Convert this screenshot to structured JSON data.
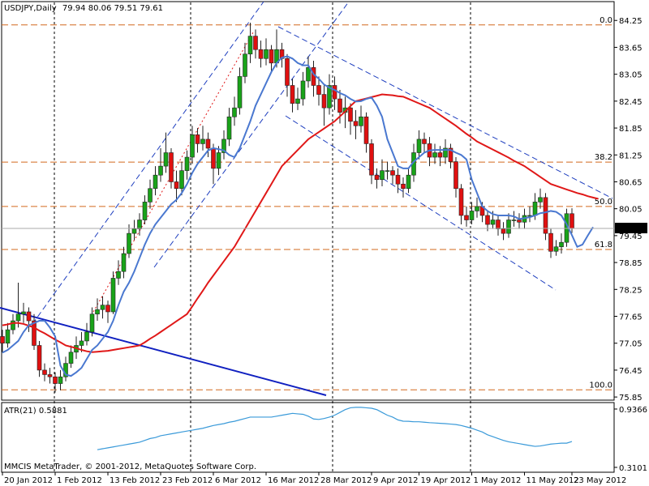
{
  "chart_data": [
    {
      "type": "candlestick",
      "title": "USDJPY,Daily",
      "categories": [
        "20 Jan 2012",
        null,
        null,
        null,
        null,
        null,
        null,
        null,
        null,
        null,
        "1 Feb 2012",
        null,
        null,
        null,
        null,
        null,
        null,
        null,
        null,
        null,
        "13 Feb 2012",
        null,
        null,
        null,
        null,
        null,
        null,
        null,
        null,
        null,
        "23 Feb 2012",
        null,
        null,
        null,
        null,
        null,
        null,
        null,
        null,
        null,
        "6 Mar 2012",
        null,
        null,
        null,
        null,
        null,
        null,
        null,
        null,
        null,
        "16 Mar 2012",
        null,
        null,
        null,
        null,
        null,
        null,
        null,
        null,
        null,
        "28 Mar 2012",
        null,
        null,
        null,
        null,
        null,
        null,
        null,
        null,
        null,
        "9 Apr 2012",
        null,
        null,
        null,
        null,
        null,
        null,
        null,
        null,
        "19 Apr 2012",
        null,
        null,
        null,
        null,
        null,
        null,
        null,
        null,
        null,
        "1 May 2012",
        null,
        null,
        null,
        null,
        null,
        null,
        null,
        null,
        null,
        "11 May 2012",
        null,
        null,
        null,
        null,
        null,
        null,
        null,
        null,
        "23 May 2012",
        null,
        null,
        null,
        null,
        null
      ],
      "ohlc": [
        [
          77.2,
          77.35,
          76.85,
          77.05
        ],
        [
          77.05,
          77.5,
          76.95,
          77.35
        ],
        [
          77.35,
          77.7,
          77.25,
          77.55
        ],
        [
          77.55,
          78.4,
          77.4,
          77.7
        ],
        [
          77.7,
          77.95,
          77.5,
          77.75
        ],
        [
          77.75,
          77.85,
          77.3,
          77.55
        ],
        [
          77.55,
          77.7,
          76.9,
          77.0
        ],
        [
          77.0,
          77.1,
          76.3,
          76.45
        ],
        [
          76.45,
          76.6,
          76.2,
          76.35
        ],
        [
          76.35,
          76.5,
          76.15,
          76.3
        ],
        [
          76.3,
          76.4,
          75.95,
          76.15
        ],
        [
          76.15,
          76.45,
          76.0,
          76.3
        ],
        [
          76.3,
          76.75,
          76.2,
          76.6
        ],
        [
          76.6,
          77.0,
          76.5,
          76.85
        ],
        [
          76.85,
          77.2,
          76.7,
          77.0
        ],
        [
          77.0,
          77.3,
          76.85,
          77.1
        ],
        [
          77.1,
          77.5,
          77.0,
          77.3
        ],
        [
          77.3,
          77.85,
          77.2,
          77.7
        ],
        [
          77.7,
          78.05,
          77.55,
          77.8
        ],
        [
          77.8,
          78.1,
          77.6,
          77.9
        ],
        [
          77.9,
          78.0,
          77.5,
          77.75
        ],
        [
          77.75,
          78.65,
          77.7,
          78.5
        ],
        [
          78.5,
          78.9,
          78.35,
          78.65
        ],
        [
          78.65,
          79.2,
          78.5,
          79.05
        ],
        [
          79.05,
          79.7,
          78.95,
          79.5
        ],
        [
          79.5,
          79.8,
          79.35,
          79.6
        ],
        [
          79.6,
          79.95,
          79.45,
          79.8
        ],
        [
          79.8,
          80.35,
          79.7,
          80.2
        ],
        [
          80.2,
          80.7,
          80.05,
          80.5
        ],
        [
          80.5,
          81.0,
          80.35,
          80.8
        ],
        [
          80.8,
          81.4,
          80.65,
          81.0
        ],
        [
          81.0,
          81.75,
          80.85,
          81.3
        ],
        [
          81.3,
          81.4,
          80.5,
          80.65
        ],
        [
          80.65,
          80.9,
          80.2,
          80.5
        ],
        [
          80.5,
          81.1,
          80.35,
          80.9
        ],
        [
          80.9,
          81.35,
          80.7,
          81.2
        ],
        [
          81.2,
          81.9,
          81.05,
          81.7
        ],
        [
          81.7,
          81.85,
          81.3,
          81.5
        ],
        [
          81.5,
          81.9,
          81.35,
          81.6
        ],
        [
          81.6,
          81.75,
          81.2,
          81.4
        ],
        [
          81.4,
          81.5,
          80.6,
          80.95
        ],
        [
          80.95,
          81.45,
          80.8,
          81.3
        ],
        [
          81.3,
          81.8,
          81.15,
          81.6
        ],
        [
          81.6,
          82.3,
          81.45,
          82.1
        ],
        [
          82.1,
          82.55,
          81.9,
          82.3
        ],
        [
          82.3,
          83.2,
          82.15,
          83.0
        ],
        [
          83.0,
          83.75,
          82.85,
          83.5
        ],
        [
          83.5,
          84.2,
          83.3,
          83.9
        ],
        [
          83.9,
          84.05,
          83.4,
          83.6
        ],
        [
          83.6,
          83.8,
          83.2,
          83.4
        ],
        [
          83.4,
          83.85,
          83.25,
          83.6
        ],
        [
          83.6,
          83.7,
          83.1,
          83.3
        ],
        [
          83.3,
          84.05,
          83.2,
          83.6
        ],
        [
          83.6,
          83.75,
          83.2,
          83.4
        ],
        [
          83.4,
          83.5,
          82.55,
          82.8
        ],
        [
          82.8,
          82.95,
          82.2,
          82.4
        ],
        [
          82.4,
          82.75,
          82.25,
          82.5
        ],
        [
          82.5,
          83.1,
          82.35,
          82.9
        ],
        [
          82.9,
          83.45,
          82.75,
          83.2
        ],
        [
          83.2,
          83.35,
          82.55,
          82.8
        ],
        [
          82.8,
          83.0,
          82.35,
          82.6
        ],
        [
          82.6,
          82.8,
          81.9,
          82.3
        ],
        [
          82.3,
          83.05,
          82.15,
          82.8
        ],
        [
          82.8,
          83.0,
          82.25,
          82.5
        ],
        [
          82.5,
          82.7,
          81.95,
          82.2
        ],
        [
          82.2,
          82.55,
          81.85,
          82.3
        ],
        [
          82.3,
          82.4,
          81.7,
          82.0
        ],
        [
          82.0,
          82.25,
          81.6,
          81.9
        ],
        [
          81.9,
          82.35,
          81.75,
          82.1
        ],
        [
          82.1,
          82.2,
          81.3,
          81.5
        ],
        [
          81.5,
          81.6,
          80.6,
          80.8
        ],
        [
          80.8,
          80.95,
          80.5,
          80.7
        ],
        [
          80.7,
          81.15,
          80.55,
          80.9
        ],
        [
          80.9,
          81.1,
          80.7,
          80.9
        ],
        [
          80.9,
          81.0,
          80.6,
          80.8
        ],
        [
          80.8,
          80.95,
          80.4,
          80.6
        ],
        [
          80.6,
          80.75,
          80.3,
          80.5
        ],
        [
          80.5,
          80.95,
          80.4,
          80.8
        ],
        [
          80.8,
          81.5,
          80.65,
          81.3
        ],
        [
          81.3,
          81.8,
          81.15,
          81.6
        ],
        [
          81.6,
          81.75,
          81.3,
          81.5
        ],
        [
          81.5,
          81.65,
          81.0,
          81.2
        ],
        [
          81.2,
          81.5,
          81.05,
          81.3
        ],
        [
          81.3,
          81.45,
          81.0,
          81.2
        ],
        [
          81.2,
          81.6,
          81.05,
          81.4
        ],
        [
          81.4,
          81.5,
          80.95,
          81.1
        ],
        [
          81.1,
          81.2,
          80.3,
          80.5
        ],
        [
          80.5,
          80.6,
          79.7,
          79.9
        ],
        [
          79.9,
          80.1,
          79.65,
          79.8
        ],
        [
          79.8,
          80.2,
          79.7,
          80.0
        ],
        [
          80.0,
          80.3,
          79.85,
          80.1
        ],
        [
          80.1,
          80.2,
          79.75,
          79.9
        ],
        [
          79.9,
          80.0,
          79.55,
          79.7
        ],
        [
          79.7,
          80.0,
          79.6,
          79.8
        ],
        [
          79.8,
          79.9,
          79.45,
          79.6
        ],
        [
          79.6,
          79.75,
          79.35,
          79.5
        ],
        [
          79.5,
          79.95,
          79.4,
          79.8
        ],
        [
          79.8,
          80.0,
          79.65,
          79.8
        ],
        [
          79.8,
          79.95,
          79.6,
          79.75
        ],
        [
          79.75,
          80.05,
          79.6,
          79.9
        ],
        [
          79.9,
          80.1,
          79.75,
          79.9
        ],
        [
          79.9,
          80.4,
          79.8,
          80.2
        ],
        [
          80.2,
          80.5,
          80.05,
          80.3
        ],
        [
          80.3,
          80.4,
          79.35,
          79.5
        ],
        [
          79.5,
          79.6,
          78.95,
          79.1
        ],
        [
          79.1,
          79.35,
          79.0,
          79.2
        ],
        [
          79.2,
          79.5,
          79.05,
          79.3
        ],
        [
          79.3,
          80.05,
          79.2,
          79.94
        ],
        [
          79.94,
          80.06,
          79.51,
          79.61
        ],
        null,
        null,
        null,
        null,
        null
      ],
      "up_color": "#19a319",
      "down_color": "#e01010",
      "lines": [
        {
          "color": "#e01818",
          "values": [
            77.45,
            77.47,
            77.5,
            77.5,
            77.48,
            77.44,
            77.4,
            77.33,
            77.27,
            77.2,
            77.13,
            77.07,
            77.0,
            76.97,
            76.94,
            76.9,
            76.87,
            76.85,
            76.86,
            76.87,
            76.88,
            76.9,
            76.92,
            76.94,
            76.96,
            76.98,
            77.0,
            77.07,
            77.15,
            77.22,
            77.3,
            77.38,
            77.46,
            77.54,
            77.62,
            77.7,
            77.87,
            78.05,
            78.22,
            78.4,
            78.56,
            78.72,
            78.88,
            79.04,
            79.2,
            79.4,
            79.6,
            79.8,
            80.0,
            80.2,
            80.4,
            80.6,
            80.8,
            81.0,
            81.12,
            81.24,
            81.36,
            81.48,
            81.6,
            81.68,
            81.76,
            81.84,
            81.92,
            82.0,
            82.11,
            82.22,
            82.34,
            82.45,
            82.48,
            82.51,
            82.54,
            82.57,
            82.6,
            82.59,
            82.58,
            82.56,
            82.55,
            82.5,
            82.45,
            82.4,
            82.35,
            82.3,
            82.22,
            82.14,
            82.06,
            81.98,
            81.9,
            81.81,
            81.72,
            81.64,
            81.55,
            81.49,
            81.43,
            81.37,
            81.31,
            81.25,
            81.19,
            81.12,
            81.06,
            81.0,
            80.92,
            80.84,
            80.76,
            80.68,
            80.6,
            80.56,
            80.52,
            80.48,
            80.44,
            80.4,
            80.37,
            80.33,
            80.3,
            80.27
          ]
        },
        {
          "color": "#4a78d0",
          "values": [
            76.84,
            76.9,
            77.0,
            77.1,
            77.3,
            77.45,
            77.5,
            77.55,
            77.55,
            77.4,
            77.2,
            76.55,
            76.35,
            76.32,
            76.4,
            76.5,
            76.7,
            76.9,
            77.0,
            77.15,
            77.3,
            77.55,
            77.9,
            78.2,
            78.4,
            78.65,
            78.95,
            79.25,
            79.5,
            79.7,
            79.85,
            80.0,
            80.15,
            80.25,
            80.4,
            80.6,
            80.85,
            81.05,
            81.2,
            81.35,
            81.4,
            81.38,
            81.35,
            81.25,
            81.2,
            81.4,
            81.7,
            82.0,
            82.35,
            82.6,
            82.85,
            83.1,
            83.3,
            83.42,
            83.45,
            83.4,
            83.3,
            83.25,
            83.25,
            83.05,
            82.95,
            82.82,
            82.75,
            82.7,
            82.63,
            82.58,
            82.5,
            82.44,
            82.45,
            82.5,
            82.53,
            82.35,
            82.1,
            81.6,
            81.3,
            81.0,
            80.95,
            80.95,
            81.1,
            81.2,
            81.3,
            81.35,
            81.36,
            81.36,
            81.36,
            81.36,
            81.3,
            81.25,
            81.15,
            80.7,
            80.4,
            80.1,
            80.0,
            79.93,
            79.9,
            79.9,
            79.9,
            79.88,
            79.82,
            79.84,
            79.86,
            79.9,
            79.95,
            79.97,
            80.0,
            79.98,
            79.9,
            79.7,
            79.46,
            79.2,
            79.25,
            79.45,
            79.64,
            null
          ]
        }
      ],
      "fib_levels": [
        {
          "label": "0.0",
          "value": 84.15
        },
        {
          "label": "38.2",
          "value": 81.09
        },
        {
          "label": "50.0",
          "value": 80.1
        },
        {
          "label": "61.8",
          "value": 79.14
        },
        {
          "label": "100.0",
          "value": 76.01
        }
      ],
      "ylim": [
        75.78,
        84.67
      ],
      "yticks": [
        84.25,
        83.65,
        83.05,
        82.45,
        81.85,
        81.25,
        80.65,
        80.05,
        79.45,
        78.85,
        78.25,
        77.65,
        77.05,
        76.45,
        75.85
      ]
    },
    {
      "type": "line",
      "title": "ATR(21)",
      "color": "#3a9ad9",
      "values": [
        null,
        null,
        null,
        null,
        null,
        null,
        null,
        null,
        null,
        null,
        null,
        null,
        null,
        null,
        null,
        null,
        null,
        null,
        0.5,
        0.51,
        0.52,
        0.53,
        0.54,
        0.55,
        0.56,
        0.57,
        0.58,
        0.6,
        0.62,
        0.63,
        0.65,
        0.66,
        0.67,
        0.68,
        0.69,
        0.7,
        0.71,
        0.72,
        0.73,
        0.745,
        0.76,
        0.77,
        0.78,
        0.795,
        0.805,
        0.82,
        0.835,
        0.85,
        0.85,
        0.85,
        0.85,
        0.85,
        0.86,
        0.87,
        0.88,
        0.89,
        0.885,
        0.88,
        0.86,
        0.83,
        0.825,
        0.835,
        0.85,
        0.87,
        0.9,
        0.93,
        0.95,
        0.955,
        0.955,
        0.95,
        0.945,
        0.93,
        0.9,
        0.87,
        0.85,
        0.82,
        0.806,
        0.805,
        0.8,
        0.8,
        0.795,
        0.79,
        0.787,
        0.783,
        0.78,
        0.775,
        0.77,
        0.76,
        0.745,
        0.73,
        0.71,
        0.69,
        0.66,
        0.64,
        0.62,
        0.6,
        0.585,
        0.575,
        0.565,
        0.555,
        0.545,
        0.536,
        0.54,
        0.55,
        0.56,
        0.565,
        0.57,
        0.57,
        0.5881,
        null,
        null,
        null,
        null,
        null
      ],
      "ylim": [
        0.258,
        1.006
      ],
      "yticks": [
        0.3101,
        0.9366
      ]
    }
  ],
  "footer": "MMCIS MetaTrader, © 2001-2012, MetaQuotes Software Corp."
}
